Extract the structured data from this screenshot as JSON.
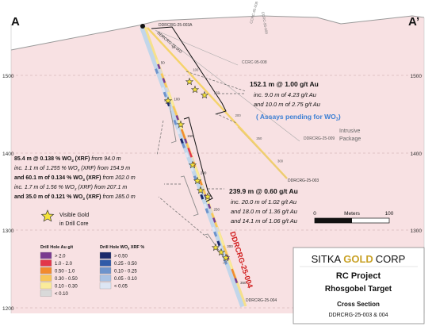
{
  "section": {
    "end_left": "A",
    "end_right": "A’",
    "elevations": [
      "1500",
      "1400",
      "1300",
      "1200"
    ],
    "colors": {
      "intrusive_fill": "#f8e1e3",
      "surface": "#9a9a9a",
      "gold_hole": "#c2d6ea"
    }
  },
  "holes": {
    "top_label": "DDRCRG-25-003A",
    "label_003": "DDRCRG-25-003",
    "label_003_mid": "DDRCRG-25-003",
    "label_004_end": "DDRCRG-25-004",
    "label_004_big": "DDRCRG-25-004",
    "ccrc_a": "CCRC-95-008",
    "ccrc_b": "CCRC-95-009",
    "ccrc_mid": "CCRC-95-008",
    "ddrcrg_009": "DDRCRG-25-009",
    "depth_ticks_003": [
      "50",
      "100",
      "150",
      "200",
      "250",
      "300"
    ],
    "depth_ticks_004": [
      "50",
      "100",
      "150",
      "200",
      "250",
      "300",
      "350"
    ]
  },
  "annotations": {
    "hole003_a": "152.1 m @ 1.00 g/t Au",
    "hole003_b": "inc. 9.0 m of 4.23 g/t Au",
    "hole003_c": "and 10.0 m of 2.75 g/t Au",
    "assays_pending": "( Assays pending for WO",
    "assays_sub": "3",
    "assays_end": ")",
    "intrusive_1": "Intrusive",
    "intrusive_2": "Package",
    "w_line1_bold": "85.4 m @ 0.138 % WO",
    "w_line1_sub": "3",
    "w_line1_bold2": " (XRF)",
    "w_line1_rest": " from 94.0 m",
    "w_line2_a": "inc. 1.1 m of 1.255 % WO",
    "w_line2_sub": "3",
    "w_line2_b": " (XRF) from 154.9 m",
    "w_line3_bold": "and 60.1 m of 0.134 % WO",
    "w_line3_sub": "3",
    "w_line3_bold2": " (XRF)",
    "w_line3_rest": " from 202.0 m",
    "w_line4_a": "inc. 1.7 m of 1.56 % WO",
    "w_line4_sub": "3",
    "w_line4_b": " (XRF) from 207.1 m",
    "w_line5_bold": "and 35.0 m of 0.121 % WO",
    "w_line5_sub": "3",
    "w_line5_bold2": " (XRF)",
    "w_line5_rest": " from 285.0 m",
    "hole004_a": "239.9 m @ 0.60 g/t Au",
    "hole004_b": "inc. 20.0 m of 1.02 g/t Au",
    "hole004_c": "and 18.0 m of 1.36 g/t Au",
    "hole004_d": "and  14.1 m of 1.06 g/t Au",
    "visible_gold_1": "Visible Gold",
    "visible_gold_2": "in Drill Core"
  },
  "scale_bar": {
    "label": "Meters",
    "min": "0",
    "max": "100"
  },
  "legend_au": {
    "title": "Drill Hole Au g/t",
    "items": [
      {
        "label": "> 2.0",
        "color": "#7a3b8f"
      },
      {
        "label": "1.0 - 2.0",
        "color": "#e2364a"
      },
      {
        "label": "0.50 - 1.0",
        "color": "#f28a2e"
      },
      {
        "label": "0.30 - 0.50",
        "color": "#f8c65a"
      },
      {
        "label": "0.10 - 0.30",
        "color": "#fbeb9a"
      },
      {
        "label": "< 0.10",
        "color": "#d9d9d9"
      }
    ]
  },
  "legend_wo3": {
    "title_a": "Drill Hole WO",
    "title_sub": "3",
    "title_b": " XRF %",
    "items": [
      {
        "label": "> 0.50",
        "color": "#1c2a6b"
      },
      {
        "label": "0.25 - 0.50",
        "color": "#2f5aa8"
      },
      {
        "label": "0.10 - 0.25",
        "color": "#6d93cc"
      },
      {
        "label": "0.05 - 0.10",
        "color": "#a9c2e4"
      },
      {
        "label": "< 0.05",
        "color": "#dde6f4"
      }
    ]
  },
  "title_block": {
    "company_a": "SITKA",
    "company_b": "GOLD",
    "company_c": "CORP",
    "project": "RC Project",
    "target": "Rhosgobel Target",
    "type": "Cross Section",
    "holes": "DDRCRG-25-003 & 004"
  }
}
